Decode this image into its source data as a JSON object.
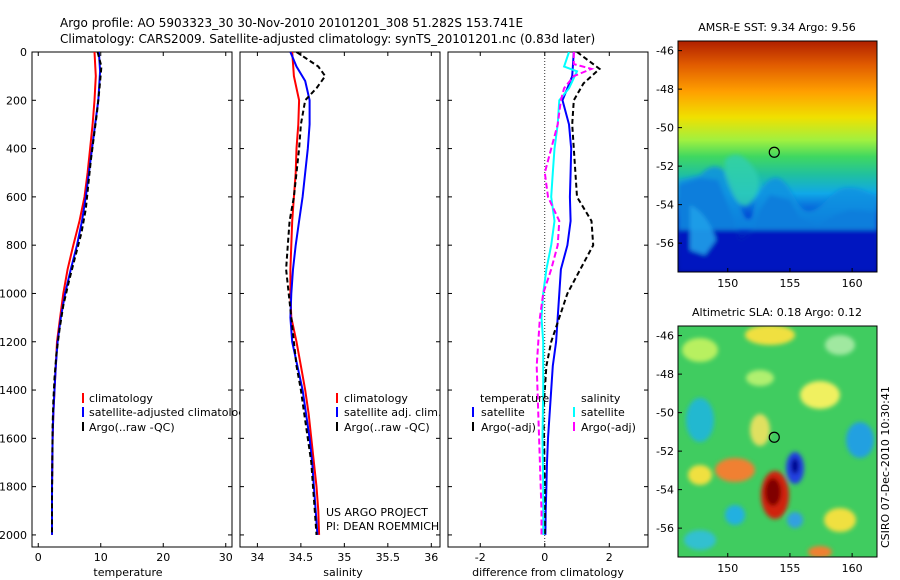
{
  "header": {
    "line1": "Argo profile: AO 5903323_30 30-Nov-2010 20101201_308 51.282S 153.741E",
    "line2": "Climatology: CARS2009. Satellite-adjusted climatology: synTS_20101201.nc (0.83d later)"
  },
  "colors": {
    "climatology": "#ff0000",
    "satellite": "#0000ff",
    "argo": "#000000",
    "salinity_satellite": "#00ffff",
    "salinity_argo": "#ff00ff"
  },
  "side_text": "CSIRO 07-Dec-2010 10:30:41",
  "credits": {
    "line1": "US ARGO PROJECT",
    "line2": "PI: DEAN ROEMMICH"
  },
  "chart_data": [
    {
      "type": "line",
      "xlabel": "temperature",
      "xlim": [
        -1,
        31
      ],
      "ylim": [
        0,
        2050
      ],
      "xticks": [
        0,
        10,
        20,
        30
      ],
      "yticks": [
        0,
        200,
        400,
        600,
        800,
        1000,
        1200,
        1400,
        1600,
        1800,
        2000
      ],
      "legend": [
        "climatology",
        "satellite-adjusted climatolog",
        "Argo(..raw -QC)"
      ],
      "series": [
        {
          "name": "climatology",
          "color": "#ff0000",
          "dash": "",
          "pts": [
            [
              9.0,
              0
            ],
            [
              9.2,
              100
            ],
            [
              9.0,
              200
            ],
            [
              8.7,
              300
            ],
            [
              8.3,
              400
            ],
            [
              7.9,
              500
            ],
            [
              7.4,
              600
            ],
            [
              6.6,
              700
            ],
            [
              5.6,
              800
            ],
            [
              4.7,
              900
            ],
            [
              4.0,
              1000
            ],
            [
              3.5,
              1100
            ],
            [
              3.0,
              1200
            ],
            [
              2.8,
              1300
            ],
            [
              2.6,
              1400
            ],
            [
              2.4,
              1500
            ],
            [
              2.3,
              1600
            ],
            [
              2.25,
              1700
            ],
            [
              2.2,
              1800
            ],
            [
              2.2,
              1900
            ],
            [
              2.2,
              2000
            ]
          ]
        },
        {
          "name": "satellite-adjusted climatolog",
          "color": "#0000ff",
          "dash": "",
          "pts": [
            [
              9.7,
              0
            ],
            [
              9.9,
              80
            ],
            [
              9.6,
              200
            ],
            [
              9.1,
              300
            ],
            [
              8.6,
              400
            ],
            [
              8.1,
              500
            ],
            [
              7.6,
              600
            ],
            [
              7.0,
              700
            ],
            [
              6.2,
              800
            ],
            [
              5.2,
              900
            ],
            [
              4.3,
              1000
            ],
            [
              3.6,
              1100
            ],
            [
              3.1,
              1200
            ],
            [
              2.8,
              1300
            ],
            [
              2.6,
              1400
            ],
            [
              2.4,
              1500
            ],
            [
              2.3,
              1600
            ],
            [
              2.25,
              1700
            ],
            [
              2.2,
              1800
            ],
            [
              2.2,
              1900
            ],
            [
              2.2,
              2000
            ]
          ]
        },
        {
          "name": "Argo(..raw -QC)",
          "color": "#000000",
          "dash": "5,3",
          "pts": [
            [
              9.5,
              0
            ],
            [
              10.1,
              60
            ],
            [
              9.8,
              150
            ],
            [
              9.4,
              250
            ],
            [
              8.9,
              350
            ],
            [
              8.4,
              450
            ],
            [
              8.0,
              550
            ],
            [
              7.6,
              650
            ],
            [
              6.9,
              750
            ],
            [
              5.9,
              850
            ],
            [
              4.9,
              950
            ],
            [
              4.0,
              1050
            ],
            [
              3.4,
              1150
            ],
            [
              2.9,
              1250
            ],
            [
              2.6,
              1350
            ],
            [
              2.4,
              1450
            ],
            [
              2.3,
              1550
            ],
            [
              2.25,
              1700
            ],
            [
              2.2,
              1850
            ],
            [
              2.2,
              2000
            ]
          ]
        }
      ]
    },
    {
      "type": "line",
      "xlabel": "salinity",
      "xlim": [
        33.8,
        36.1
      ],
      "ylim": [
        0,
        2050
      ],
      "xticks": [
        34,
        34.5,
        35,
        35.5,
        36
      ],
      "yticks": [
        0,
        200,
        400,
        600,
        800,
        1000,
        1200,
        1400,
        1600,
        1800,
        2000
      ],
      "legend": [
        "climatology",
        "satellite adj. clim.",
        "Argo(..raw -QC)"
      ],
      "series": [
        {
          "name": "climatology",
          "color": "#ff0000",
          "dash": "",
          "pts": [
            [
              34.4,
              0
            ],
            [
              34.42,
              100
            ],
            [
              34.48,
              200
            ],
            [
              34.47,
              300
            ],
            [
              34.45,
              400
            ],
            [
              34.44,
              500
            ],
            [
              34.42,
              600
            ],
            [
              34.4,
              700
            ],
            [
              34.39,
              800
            ],
            [
              34.38,
              900
            ],
            [
              34.38,
              1000
            ],
            [
              34.39,
              1100
            ],
            [
              34.45,
              1200
            ],
            [
              34.5,
              1300
            ],
            [
              34.55,
              1400
            ],
            [
              34.59,
              1500
            ],
            [
              34.62,
              1600
            ],
            [
              34.65,
              1700
            ],
            [
              34.68,
              1800
            ],
            [
              34.7,
              1900
            ],
            [
              34.71,
              2000
            ]
          ]
        },
        {
          "name": "satellite adj. clim.",
          "color": "#0000ff",
          "dash": "",
          "pts": [
            [
              34.38,
              0
            ],
            [
              34.45,
              60
            ],
            [
              34.55,
              120
            ],
            [
              34.6,
              200
            ],
            [
              34.6,
              300
            ],
            [
              34.58,
              400
            ],
            [
              34.55,
              500
            ],
            [
              34.52,
              600
            ],
            [
              34.48,
              700
            ],
            [
              34.44,
              800
            ],
            [
              34.41,
              900
            ],
            [
              34.39,
              1000
            ],
            [
              34.38,
              1100
            ],
            [
              34.4,
              1200
            ],
            [
              34.46,
              1300
            ],
            [
              34.52,
              1400
            ],
            [
              34.56,
              1500
            ],
            [
              34.6,
              1600
            ],
            [
              34.63,
              1700
            ],
            [
              34.65,
              1800
            ],
            [
              34.67,
              1900
            ],
            [
              34.69,
              2000
            ]
          ]
        },
        {
          "name": "Argo(..raw -QC)",
          "color": "#000000",
          "dash": "5,3",
          "pts": [
            [
              34.45,
              0
            ],
            [
              34.7,
              60
            ],
            [
              34.78,
              100
            ],
            [
              34.68,
              150
            ],
            [
              34.55,
              200
            ],
            [
              34.5,
              300
            ],
            [
              34.48,
              400
            ],
            [
              34.45,
              500
            ],
            [
              34.42,
              600
            ],
            [
              34.37,
              700
            ],
            [
              34.35,
              800
            ],
            [
              34.33,
              900
            ],
            [
              34.36,
              1000
            ],
            [
              34.39,
              1100
            ],
            [
              34.42,
              1200
            ],
            [
              34.45,
              1300
            ],
            [
              34.5,
              1400
            ],
            [
              34.54,
              1500
            ],
            [
              34.58,
              1600
            ],
            [
              34.62,
              1700
            ],
            [
              34.64,
              1800
            ],
            [
              34.66,
              1900
            ],
            [
              34.68,
              2000
            ]
          ]
        }
      ]
    },
    {
      "type": "line",
      "xlabel": "difference from climatology",
      "xlim": [
        -3,
        3.2
      ],
      "ylim": [
        0,
        2050
      ],
      "xticks": [
        -2,
        0,
        2
      ],
      "yticks": [
        0,
        200,
        400,
        600,
        800,
        1000,
        1200,
        1400,
        1600,
        1800,
        2000
      ],
      "legend_left": {
        "title": "temperature",
        "items": [
          "satellite",
          "Argo(-adj)"
        ]
      },
      "legend_right": {
        "title": "salinity",
        "items": [
          "satellite",
          "Argo(-adj)"
        ]
      },
      "series": [
        {
          "name": "temperature satellite",
          "color": "#0000ff",
          "dash": "",
          "pts": [
            [
              0.9,
              0
            ],
            [
              0.85,
              100
            ],
            [
              0.7,
              150
            ],
            [
              0.55,
              200
            ],
            [
              0.75,
              300
            ],
            [
              0.82,
              400
            ],
            [
              0.8,
              500
            ],
            [
              0.78,
              600
            ],
            [
              0.8,
              700
            ],
            [
              0.7,
              800
            ],
            [
              0.5,
              900
            ],
            [
              0.45,
              1000
            ],
            [
              0.4,
              1100
            ],
            [
              0.35,
              1200
            ],
            [
              0.25,
              1300
            ],
            [
              0.2,
              1400
            ],
            [
              0.15,
              1500
            ],
            [
              0.1,
              1600
            ],
            [
              0.07,
              1700
            ],
            [
              0.05,
              1800
            ],
            [
              0.03,
              1900
            ],
            [
              0.02,
              2000
            ]
          ]
        },
        {
          "name": "temperature Argo(-adj)",
          "color": "#000000",
          "dash": "5,3",
          "pts": [
            [
              1.0,
              0
            ],
            [
              1.7,
              70
            ],
            [
              1.2,
              130
            ],
            [
              0.9,
              200
            ],
            [
              0.85,
              300
            ],
            [
              0.9,
              400
            ],
            [
              0.95,
              500
            ],
            [
              1.0,
              600
            ],
            [
              1.45,
              700
            ],
            [
              1.5,
              800
            ],
            [
              1.1,
              900
            ],
            [
              0.7,
              1000
            ],
            [
              0.45,
              1100
            ],
            [
              0.2,
              1200
            ],
            [
              0.05,
              1300
            ],
            [
              0.0,
              1400
            ],
            [
              -0.05,
              1500
            ],
            [
              -0.02,
              1600
            ],
            [
              0.0,
              1800
            ],
            [
              0.0,
              2000
            ]
          ]
        },
        {
          "name": "salinity satellite",
          "color": "#00ffff",
          "dash": "",
          "pts": [
            [
              0.75,
              0
            ],
            [
              0.6,
              60
            ],
            [
              1.0,
              80
            ],
            [
              0.75,
              150
            ],
            [
              0.45,
              200
            ],
            [
              0.4,
              300
            ],
            [
              0.3,
              400
            ],
            [
              0.25,
              500
            ],
            [
              0.2,
              600
            ],
            [
              0.3,
              700
            ],
            [
              0.2,
              800
            ],
            [
              0.05,
              900
            ],
            [
              -0.05,
              1000
            ],
            [
              -0.1,
              1100
            ],
            [
              -0.05,
              1200
            ],
            [
              -0.05,
              1400
            ],
            [
              -0.07,
              1600
            ],
            [
              -0.05,
              1800
            ],
            [
              -0.05,
              2000
            ]
          ]
        },
        {
          "name": "salinity Argo(-adj)",
          "color": "#ff00ff",
          "dash": "6,3",
          "pts": [
            [
              0.9,
              0
            ],
            [
              0.9,
              50
            ],
            [
              1.45,
              70
            ],
            [
              0.9,
              100
            ],
            [
              0.6,
              150
            ],
            [
              0.5,
              200
            ],
            [
              0.4,
              300
            ],
            [
              0.2,
              400
            ],
            [
              0.0,
              500
            ],
            [
              0.1,
              600
            ],
            [
              0.45,
              700
            ],
            [
              0.4,
              800
            ],
            [
              0.2,
              900
            ],
            [
              -0.05,
              1000
            ],
            [
              -0.15,
              1100
            ],
            [
              -0.2,
              1200
            ],
            [
              -0.25,
              1300
            ],
            [
              -0.2,
              1500
            ],
            [
              -0.15,
              1700
            ],
            [
              -0.1,
              1900
            ],
            [
              -0.1,
              2000
            ]
          ]
        }
      ]
    },
    {
      "type": "heatmap",
      "title": "AMSR-E SST: 9.34 Argo: 9.56",
      "xlim": [
        146,
        162
      ],
      "ylim": [
        -57.5,
        -45.5
      ],
      "xticks": [
        150,
        155,
        160
      ],
      "yticks": [
        -46,
        -48,
        -50,
        -52,
        -54,
        -56
      ],
      "marker": [
        153.74,
        -51.28
      ]
    },
    {
      "type": "heatmap",
      "title": "Altimetric SLA: 0.18 Argo: 0.12",
      "xlim": [
        146,
        162
      ],
      "ylim": [
        -57.5,
        -45.5
      ],
      "xticks": [
        150,
        155,
        160
      ],
      "yticks": [
        -46,
        -48,
        -50,
        -52,
        -54,
        -56
      ],
      "marker": [
        153.74,
        -51.28
      ]
    }
  ]
}
